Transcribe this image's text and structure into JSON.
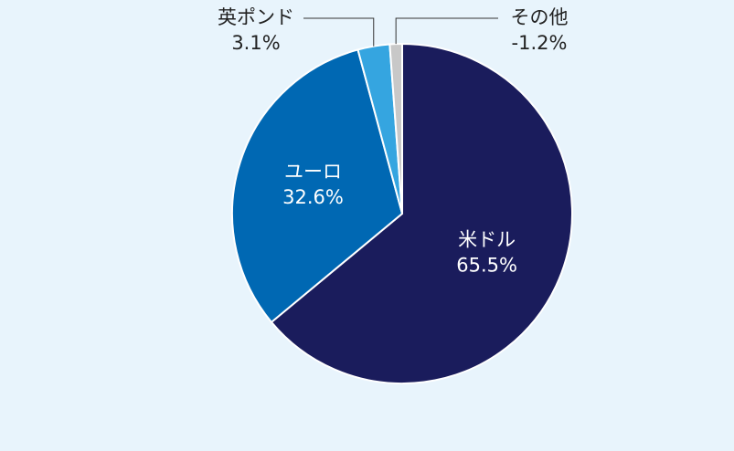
{
  "chart_data": {
    "type": "pie",
    "categories": [
      "米ドル",
      "ユーロ",
      "英ポンド",
      "その他"
    ],
    "values": [
      65.5,
      32.6,
      3.1,
      -1.2
    ],
    "value_labels": [
      "65.5%",
      "32.6%",
      "3.1%",
      "-1.2%"
    ],
    "colors": [
      "#1a1c5c",
      "#0068b3",
      "#35a5e0",
      "#c8c8c8"
    ]
  }
}
